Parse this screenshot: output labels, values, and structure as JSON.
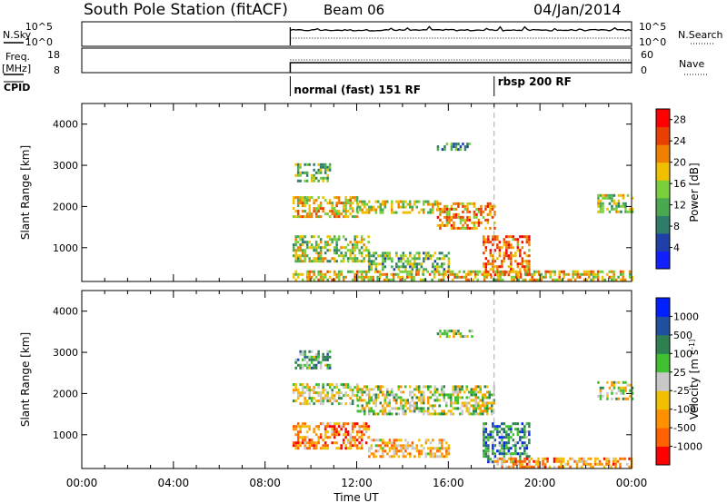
{
  "header": {
    "station": "South Pole Station (fitACF)",
    "beam": "Beam 06",
    "date": "04/Jan/2014"
  },
  "top_panels": {
    "nsky_label": "N.Sky",
    "nsky_ticks": [
      "10^5",
      "10^0"
    ],
    "nsearch_label": "N.Search",
    "nsearch_ticks": [
      "10^5",
      "10^0"
    ],
    "freq_label": "Freq.",
    "freq_unit": "[MHz]",
    "freq_ticks": [
      "18",
      "8"
    ],
    "nave_label": "Nave",
    "nave_ticks": [
      "60",
      "0"
    ],
    "cpid_label": "CPID",
    "cpid_segments": [
      {
        "label": "normal (fast) 151 RF",
        "start_hour": 9.1
      },
      {
        "label": "rbsp 200 RF",
        "start_hour": 18.0
      }
    ]
  },
  "colors": {
    "power_scale": [
      "#1020ff",
      "#1e40a8",
      "#2e7d6a",
      "#4aa850",
      "#7ad03a",
      "#f0c000",
      "#f08000",
      "#e84000",
      "#ff0000"
    ],
    "velocity_scale": [
      "#ff0000",
      "#ff6000",
      "#ff9000",
      "#f0c000",
      "#c8c8c8",
      "#3ec030",
      "#2e8050",
      "#2050a0",
      "#0020ff"
    ]
  },
  "chart_data": [
    {
      "type": "heatmap",
      "name": "power",
      "ylabel": "Slant Range [km]",
      "yticks": [
        "1000",
        "2000",
        "3000",
        "4000"
      ],
      "ylim": [
        180,
        4500
      ],
      "xlim_hours": [
        0,
        24
      ],
      "colorbar": {
        "label": "Power [dB]",
        "ticks": [
          "4",
          "8",
          "12",
          "16",
          "20",
          "24",
          "28"
        ],
        "range": [
          0,
          30
        ]
      },
      "echo_regions": [
        {
          "t0": 9.3,
          "t1": 10.8,
          "r0": 2650,
          "r1": 3050,
          "level": 0.45
        },
        {
          "t0": 9.2,
          "t1": 12.0,
          "r0": 1750,
          "r1": 2250,
          "level": 0.6
        },
        {
          "t0": 12.0,
          "t1": 15.5,
          "r0": 1850,
          "r1": 2150,
          "level": 0.55
        },
        {
          "t0": 15.5,
          "t1": 18.0,
          "r0": 1500,
          "r1": 2100,
          "level": 0.7
        },
        {
          "t0": 9.2,
          "t1": 12.5,
          "r0": 700,
          "r1": 1300,
          "level": 0.5
        },
        {
          "t0": 12.5,
          "t1": 16.0,
          "r0": 500,
          "r1": 900,
          "level": 0.4
        },
        {
          "t0": 17.5,
          "t1": 19.5,
          "r0": 350,
          "r1": 1300,
          "level": 0.75
        },
        {
          "t0": 9.2,
          "t1": 24.0,
          "r0": 200,
          "r1": 450,
          "level": 0.6
        },
        {
          "t0": 22.5,
          "t1": 24.0,
          "r0": 1900,
          "r1": 2300,
          "level": 0.5
        },
        {
          "t0": 15.5,
          "t1": 17.0,
          "r0": 3400,
          "r1": 3550,
          "level": 0.35
        }
      ]
    },
    {
      "type": "heatmap",
      "name": "velocity",
      "ylabel": "Slant Range [km]",
      "yticks": [
        "1000",
        "2000",
        "3000",
        "4000"
      ],
      "ylim": [
        180,
        4500
      ],
      "xlim_hours": [
        0,
        24
      ],
      "xlabel": "Time UT",
      "xticks": [
        "00:00",
        "04:00",
        "08:00",
        "12:00",
        "16:00",
        "20:00",
        "00:00"
      ],
      "colorbar": {
        "label": "Velocity [m s^-1]",
        "ticks": [
          "1000",
          "500",
          "100",
          "25",
          "-25",
          "-100",
          "-500",
          "-1000"
        ]
      },
      "echo_regions": [
        {
          "t0": 9.3,
          "t1": 10.8,
          "r0": 2650,
          "r1": 3050,
          "level": 0.6
        },
        {
          "t0": 9.2,
          "t1": 12.0,
          "r0": 1750,
          "r1": 2250,
          "level": 0.5
        },
        {
          "t0": 12.0,
          "t1": 18.0,
          "r0": 1500,
          "r1": 2200,
          "level": 0.5
        },
        {
          "t0": 9.2,
          "t1": 12.5,
          "r0": 700,
          "r1": 1300,
          "level": 0.25
        },
        {
          "t0": 12.5,
          "t1": 16.0,
          "r0": 500,
          "r1": 900,
          "level": 0.35
        },
        {
          "t0": 17.5,
          "t1": 19.5,
          "r0": 350,
          "r1": 1300,
          "level": 0.75
        },
        {
          "t0": 18.0,
          "t1": 24.0,
          "r0": 200,
          "r1": 450,
          "level": 0.3
        },
        {
          "t0": 22.5,
          "t1": 24.0,
          "r0": 1900,
          "r1": 2300,
          "level": 0.5
        },
        {
          "t0": 15.5,
          "t1": 17.0,
          "r0": 3400,
          "r1": 3550,
          "level": 0.5
        }
      ]
    }
  ]
}
